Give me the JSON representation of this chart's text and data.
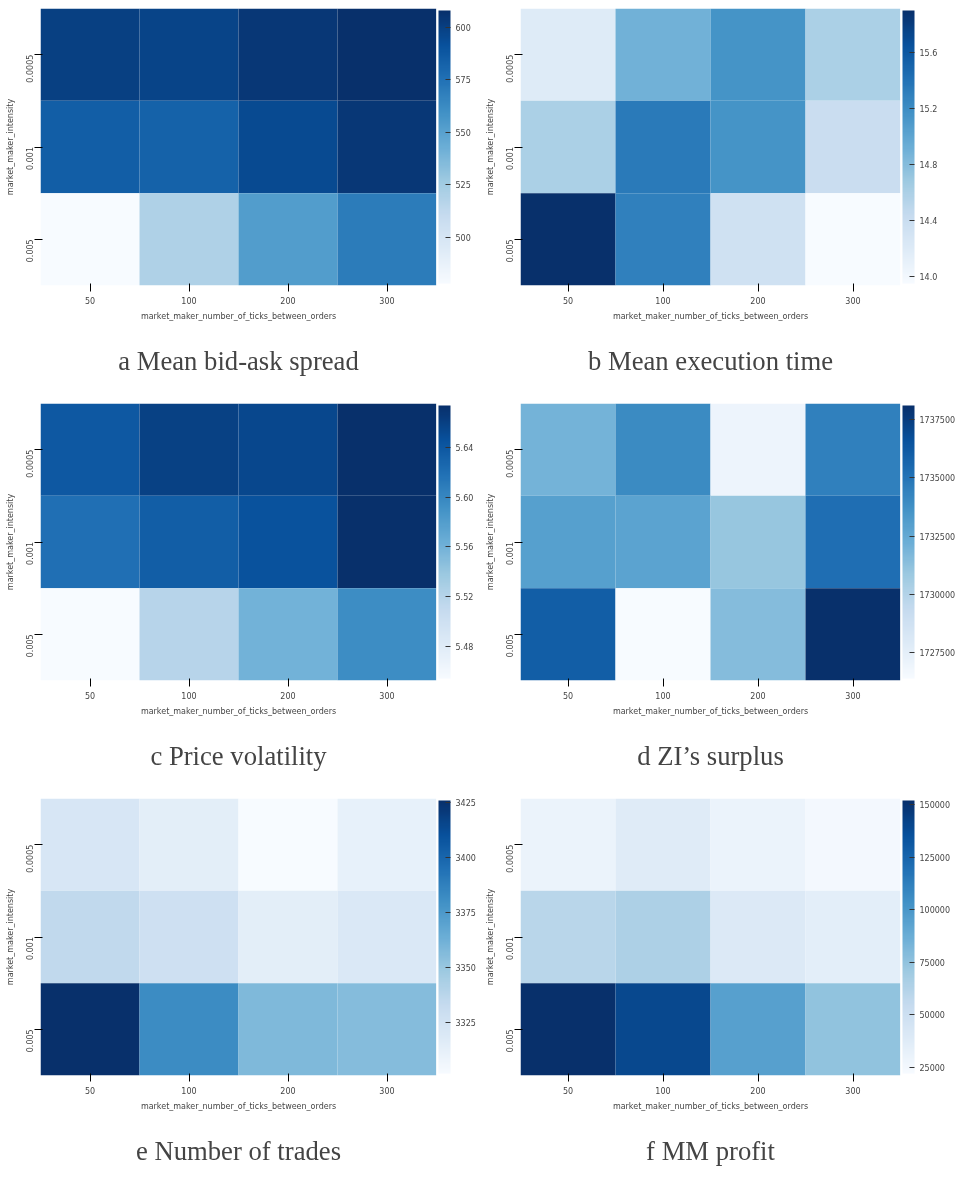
{
  "chart_data": [
    {
      "type": "heatmap",
      "title": "a Mean bid-ask spread",
      "xlabel": "market_maker_number_of_ticks_between_orders",
      "ylabel": "market_maker_intensity",
      "categories": [
        "50",
        "100",
        "200",
        "300"
      ],
      "y_categories": [
        "0.0005",
        "0.001",
        "0.005"
      ],
      "cells": [
        [
          600,
          598,
          604,
          608
        ],
        [
          585,
          583,
          595,
          604
        ],
        [
          478,
          520,
          553,
          570
        ]
      ],
      "clim": [
        478,
        608
      ],
      "cticks": [
        500,
        525,
        550,
        575,
        600
      ],
      "grid": false
    },
    {
      "type": "heatmap",
      "title": "b Mean execution time",
      "xlabel": "market_maker_number_of_ticks_between_orders",
      "ylabel": "market_maker_intensity",
      "categories": [
        "50",
        "100",
        "200",
        "300"
      ],
      "y_categories": [
        "0.0005",
        "0.001",
        "0.005"
      ],
      "cells": [
        [
          14.2,
          14.9,
          15.15,
          14.6
        ],
        [
          14.6,
          15.35,
          15.15,
          14.4
        ],
        [
          15.9,
          15.3,
          14.35,
          13.95
        ]
      ],
      "clim": [
        13.95,
        15.9
      ],
      "cticks": [
        {
          "value": 14.0,
          "label": "14.0"
        },
        14.4,
        14.8,
        15.2,
        15.6
      ],
      "grid": false
    },
    {
      "type": "heatmap",
      "title": "c Price volatility",
      "xlabel": "market_maker_number_of_ticks_between_orders",
      "ylabel": "market_maker_intensity",
      "categories": [
        "50",
        "100",
        "200",
        "300"
      ],
      "y_categories": [
        "0.0005",
        "0.001",
        "0.005"
      ],
      "cells": [
        [
          5.64,
          5.66,
          5.655,
          5.674
        ],
        [
          5.62,
          5.635,
          5.645,
          5.674
        ],
        [
          5.454,
          5.52,
          5.56,
          5.595
        ]
      ],
      "clim": [
        5.454,
        5.674
      ],
      "cticks": [
        5.48,
        5.52,
        5.56,
        {
          "value": 5.6,
          "label": "5.60"
        },
        5.64
      ],
      "grid": false
    },
    {
      "type": "heatmap",
      "title": "d ZI’s surplus",
      "xlabel": "market_maker_number_of_ticks_between_orders",
      "ylabel": "market_maker_intensity",
      "categories": [
        "50",
        "100",
        "200",
        "300"
      ],
      "y_categories": [
        "0.0005",
        "0.001",
        "0.005"
      ],
      "cells": [
        [
          1732000,
          1734000,
          1727000,
          1734500
        ],
        [
          1733000,
          1732800,
          1731000,
          1735300
        ],
        [
          1736000,
          1726400,
          1731500,
          1738100
        ]
      ],
      "clim": [
        1726400,
        1738100
      ],
      "cticks": [
        1727500,
        1730000,
        1732500,
        1735000,
        1737500
      ],
      "grid": false
    },
    {
      "type": "heatmap",
      "title": "e Number of trades",
      "xlabel": "market_maker_number_of_ticks_between_orders",
      "ylabel": "market_maker_intensity",
      "categories": [
        "50",
        "100",
        "200",
        "300"
      ],
      "y_categories": [
        "0.0005",
        "0.001",
        "0.005"
      ],
      "cells": [
        [
          3322,
          3315,
          3302,
          3312
        ],
        [
          3335,
          3328,
          3315,
          3320
        ],
        [
          3426,
          3382,
          3358,
          3356
        ]
      ],
      "clim": [
        3302,
        3426
      ],
      "cticks": [
        3325,
        3350,
        3375,
        3400,
        3425
      ],
      "grid": false
    },
    {
      "type": "heatmap",
      "title": "f MM profit",
      "xlabel": "market_maker_number_of_ticks_between_orders",
      "ylabel": "market_maker_intensity",
      "categories": [
        "50",
        "100",
        "200",
        "300"
      ],
      "y_categories": [
        "0.0005",
        "0.001",
        "0.005"
      ],
      "cells": [
        [
          30000,
          38000,
          30000,
          25000
        ],
        [
          60000,
          65000,
          40000,
          35000
        ],
        [
          152000,
          140000,
          95000,
          75000
        ]
      ],
      "clim": [
        22000,
        152000
      ],
      "cticks": [
        25000,
        50000,
        75000,
        100000,
        125000,
        150000
      ],
      "grid": false
    }
  ]
}
